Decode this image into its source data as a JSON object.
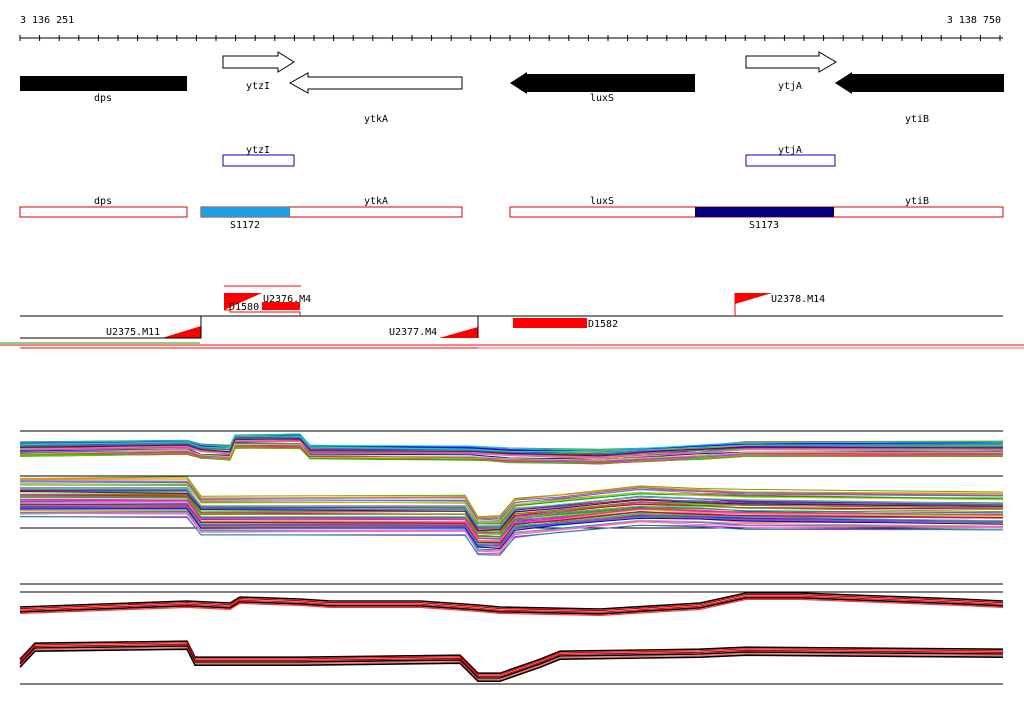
{
  "coords": {
    "start": "3 136 251",
    "end": "3 138 750"
  },
  "genes": [
    {
      "name": "dps",
      "strand": "-",
      "color": "black"
    },
    {
      "name": "ytzI",
      "strand": "+",
      "color": "white"
    },
    {
      "name": "ytkA",
      "strand": "-",
      "color": "white"
    },
    {
      "name": "luxS",
      "strand": "-",
      "color": "black"
    },
    {
      "name": "ytjA",
      "strand": "+",
      "color": "white"
    },
    {
      "name": "ytiB",
      "strand": "-",
      "color": "black"
    }
  ],
  "transcripts": [
    {
      "name": "ytzI"
    },
    {
      "name": "ytjA"
    },
    {
      "name": "dps"
    },
    {
      "name": "ytkA"
    },
    {
      "name": "luxS"
    },
    {
      "name": "ytiB"
    }
  ],
  "segments": [
    {
      "name": "S1172",
      "color": "#1ea0e6"
    },
    {
      "name": "S1173",
      "color": "#000080"
    }
  ],
  "features": {
    "upshifts": [
      "U2375.M11",
      "U2376.M4",
      "U2377.M4",
      "U2378.M14"
    ],
    "downshifts": [
      "D1580",
      "D1582"
    ]
  },
  "colors": {
    "feature": "#ff0000",
    "transcript_border_operon": "#dd0000",
    "transcript_border_gene": "#0000cc"
  }
}
